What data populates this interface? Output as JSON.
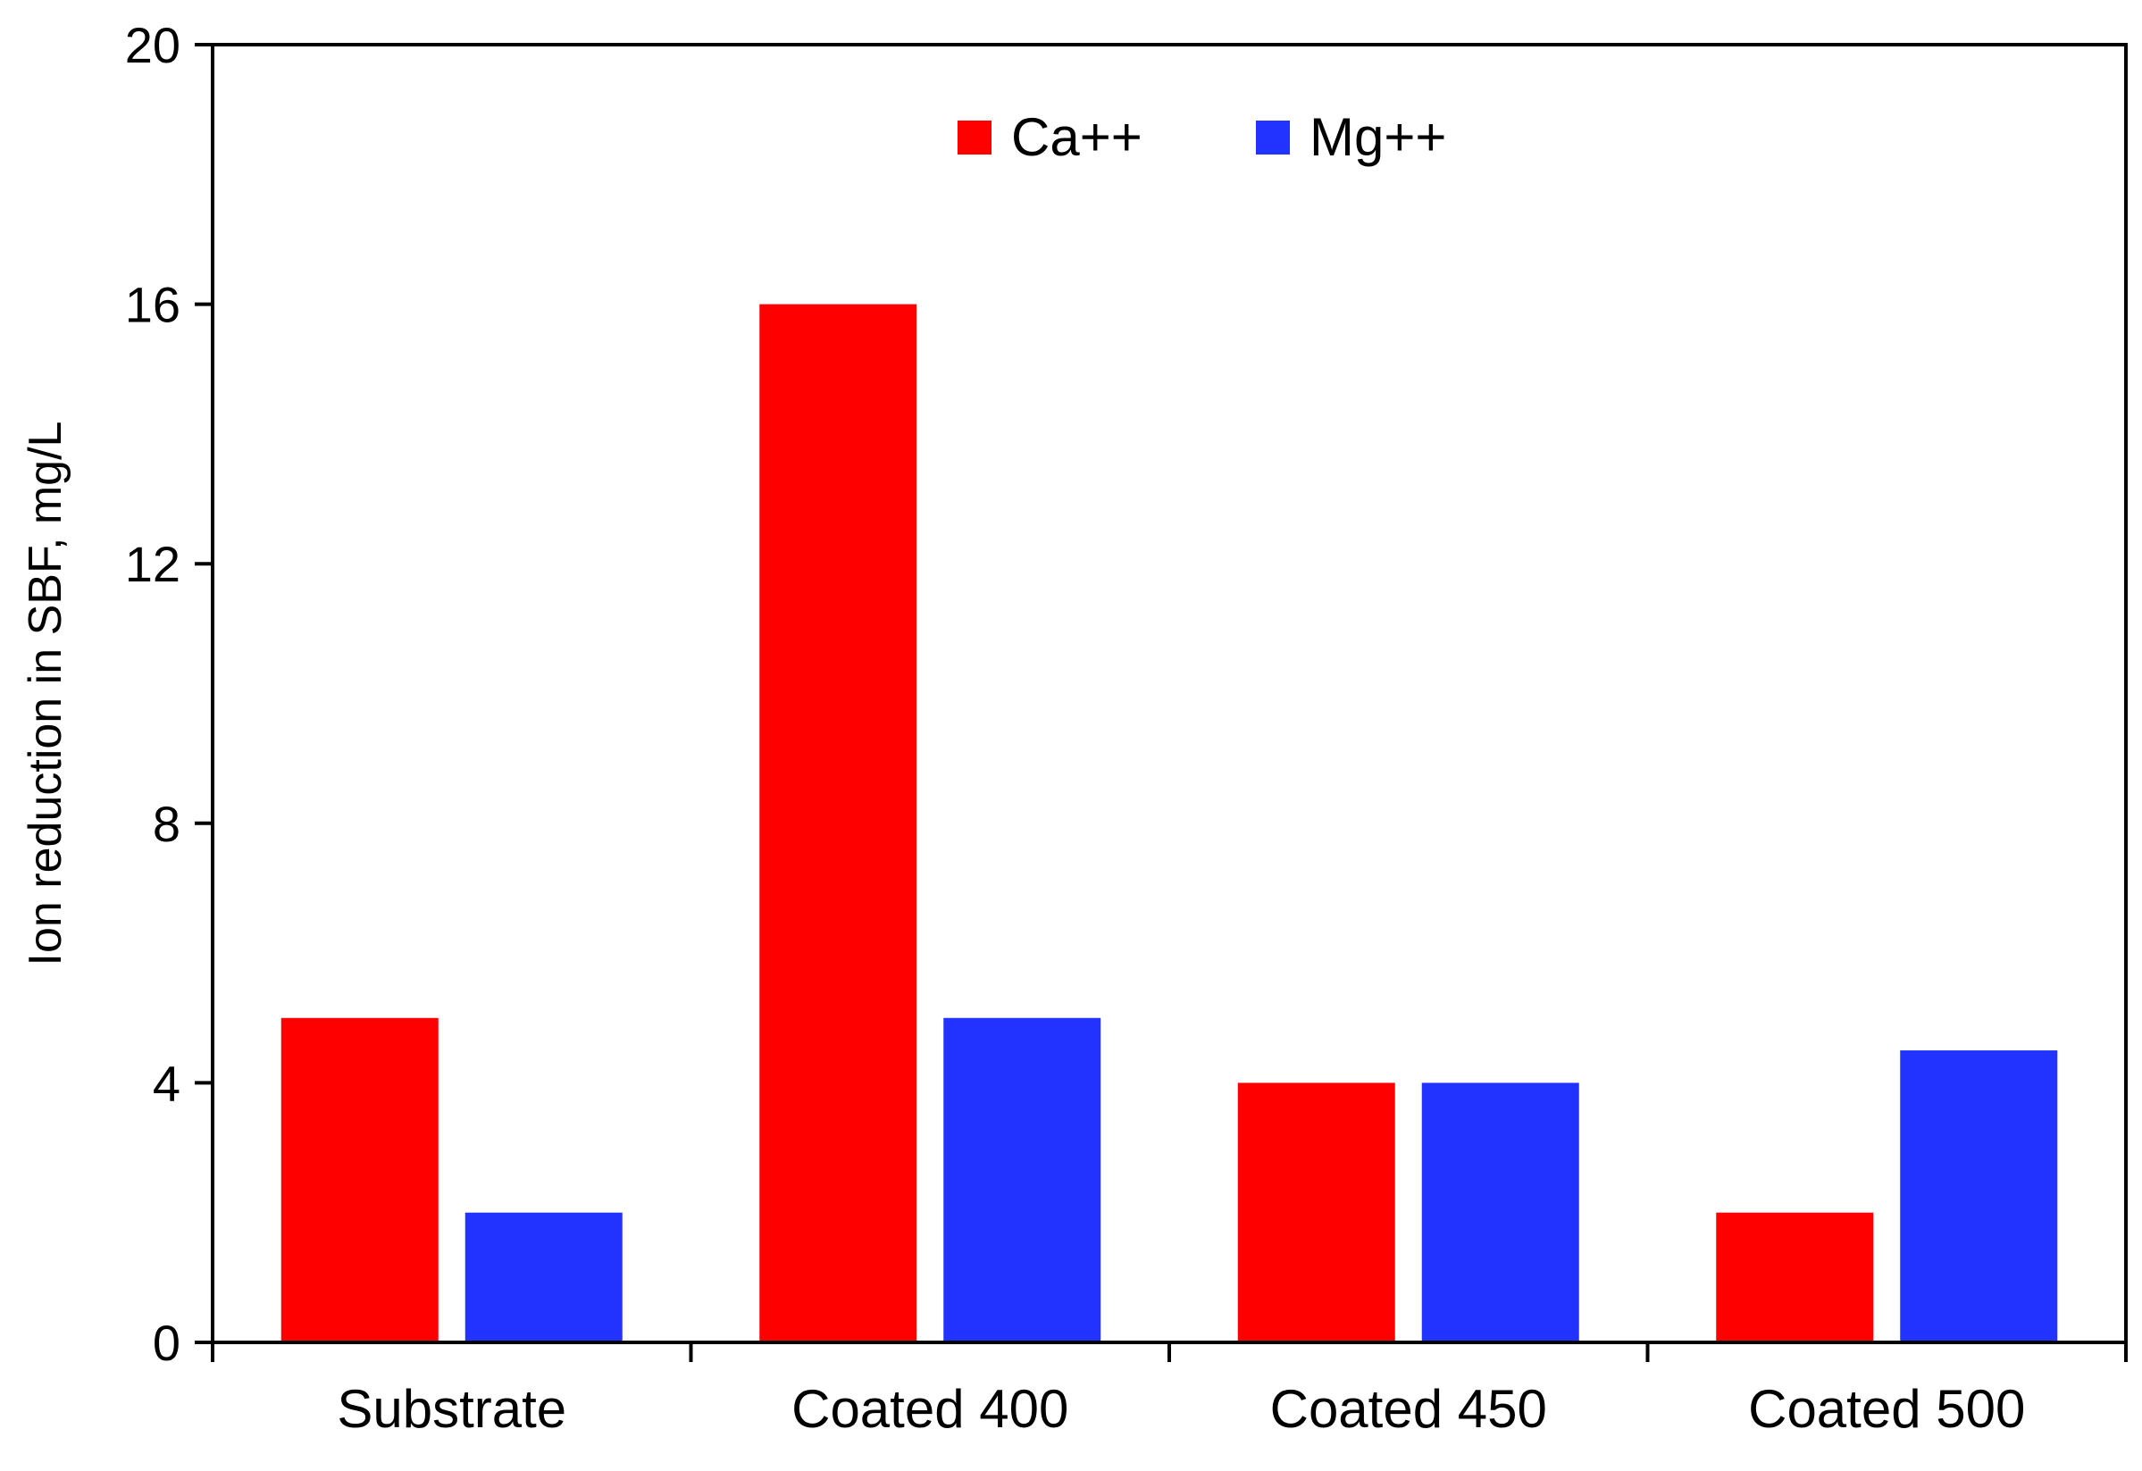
{
  "chart_data": {
    "type": "bar",
    "title": "",
    "xlabel": "",
    "ylabel": "Ion reduction in SBF, mg/L",
    "ylim": [
      0,
      20
    ],
    "yticks": [
      "0",
      "4",
      "8",
      "12",
      "16",
      "20"
    ],
    "categories": [
      "Substrate",
      "Coated 400",
      "Coated 450",
      "Coated 500"
    ],
    "series": [
      {
        "name": "Ca++",
        "color": "#ff0000",
        "values": [
          5,
          16,
          4,
          2
        ]
      },
      {
        "name": "Mg++",
        "color": "#2233ff",
        "values": [
          2,
          5,
          4,
          4.5
        ]
      }
    ],
    "legend_position": "top-center",
    "grid": false
  }
}
